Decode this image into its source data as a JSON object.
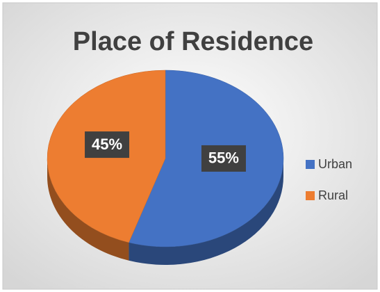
{
  "chart_data": {
    "type": "pie",
    "title": "Place of Residence",
    "categories": [
      "Urban",
      "Rural"
    ],
    "values": [
      55,
      45
    ],
    "value_labels": [
      "55%",
      "45%"
    ],
    "colors": [
      "#4472c4",
      "#ed7d31"
    ],
    "legend": "right"
  }
}
